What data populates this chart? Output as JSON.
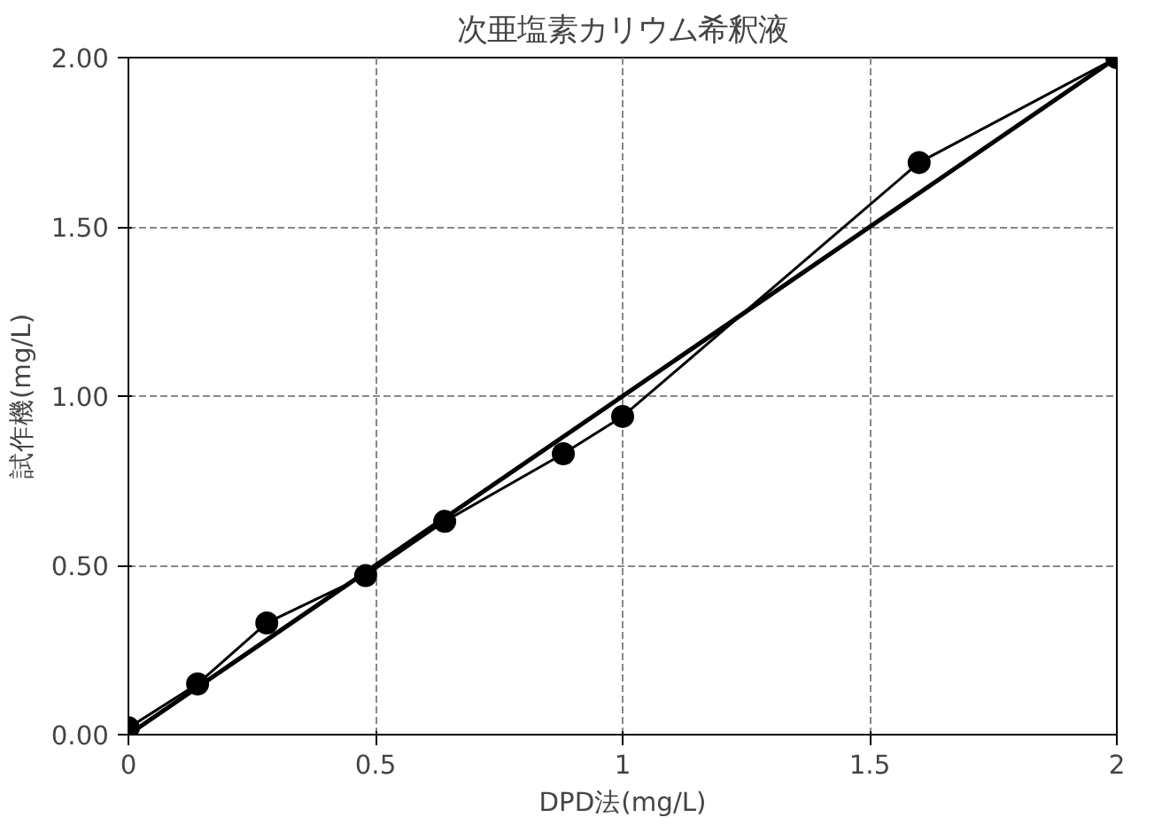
{
  "chart_data": {
    "type": "line",
    "title": "次亜塩素カリウム希釈液",
    "xlabel": "DPD法(mg/L)",
    "ylabel": "試作機(mg/L)",
    "xlim": [
      0,
      2
    ],
    "ylim": [
      0,
      2
    ],
    "xticks": [
      0,
      0.5,
      1,
      1.5,
      2
    ],
    "yticks": [
      {
        "value": 0,
        "label": "0.00"
      },
      {
        "value": 0.5,
        "label": "0.50"
      },
      {
        "value": 1,
        "label": "1.00"
      },
      {
        "value": 1.5,
        "label": "1.50"
      },
      {
        "value": 2,
        "label": "2.00"
      }
    ],
    "grid": true,
    "series": [
      {
        "color": "#000000",
        "marker": "circle",
        "x": [
          0,
          0.14,
          0.28,
          0.48,
          0.64,
          0.88,
          1.0,
          1.6,
          2.0
        ],
        "values": [
          0.02,
          0.15,
          0.33,
          0.47,
          0.63,
          0.83,
          0.94,
          1.69,
          2.0
        ]
      },
      {
        "color": "#000000",
        "marker": "none",
        "x": [
          0,
          2
        ],
        "values": [
          0,
          2
        ]
      }
    ]
  }
}
